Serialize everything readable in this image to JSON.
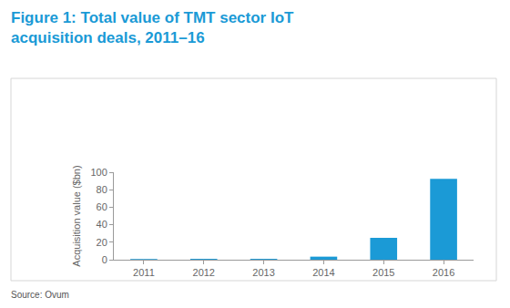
{
  "chart_data": {
    "type": "bar",
    "title": "Figure 1: Total value of TMT sector IoT\nacquisition deals, 2011–16",
    "y_label": "Acquisition value ($bn)",
    "categories": [
      "2011",
      "2012",
      "2013",
      "2014",
      "2015",
      "2016"
    ],
    "values": [
      0.8,
      1.0,
      1.0,
      3.5,
      25,
      92.5
    ],
    "color": "#1b9ad6",
    "ylim": [
      0,
      100
    ],
    "yticks": [
      0,
      20,
      40,
      60,
      80,
      100
    ],
    "grid": false,
    "annotations": [
      "Source: Ovum"
    ]
  }
}
